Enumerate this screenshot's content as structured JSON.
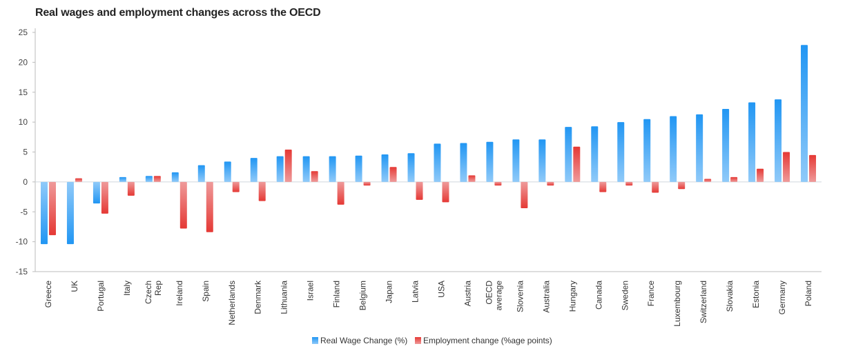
{
  "chart_data": {
    "type": "bar",
    "title": "Real wages and employment changes across the OECD",
    "categories": [
      [
        "Greece"
      ],
      [
        "UK"
      ],
      [
        "Portugal"
      ],
      [
        "Italy"
      ],
      [
        "Czech",
        "Rep"
      ],
      [
        "Ireland"
      ],
      [
        "Spain"
      ],
      [
        "Netherlands"
      ],
      [
        "Denmark"
      ],
      [
        "Lithuania"
      ],
      [
        "Israel"
      ],
      [
        "Finland"
      ],
      [
        "Belgium"
      ],
      [
        "Japan"
      ],
      [
        "Latvia"
      ],
      [
        "USA"
      ],
      [
        "Austria"
      ],
      [
        "OECD",
        "average"
      ],
      [
        "Slovenia"
      ],
      [
        "Australia"
      ],
      [
        "Hungary"
      ],
      [
        "Canada"
      ],
      [
        "Sweden"
      ],
      [
        "France"
      ],
      [
        "Luxembourg"
      ],
      [
        "Switzerland"
      ],
      [
        "Slovakia"
      ],
      [
        "Estonia"
      ],
      [
        "Germany"
      ],
      [
        "Poland"
      ]
    ],
    "series": [
      {
        "name": "Real Wage Change (%)",
        "color": "#42a5f5",
        "values": [
          -10.4,
          -10.4,
          -3.6,
          0.8,
          1.0,
          1.6,
          2.8,
          3.4,
          4.0,
          4.3,
          4.3,
          4.3,
          4.4,
          4.6,
          4.8,
          6.4,
          6.5,
          6.7,
          7.1,
          7.1,
          9.2,
          9.3,
          10.0,
          10.5,
          11.0,
          11.3,
          12.2,
          13.3,
          13.8,
          22.9
        ]
      },
      {
        "name": "Employment change (%age points)",
        "color": "#ef5350",
        "values": [
          -8.9,
          0.6,
          -5.3,
          -2.3,
          1.0,
          -7.8,
          -8.4,
          -1.7,
          -3.2,
          5.4,
          1.8,
          -3.8,
          -0.6,
          2.5,
          -3.0,
          -3.4,
          1.1,
          -0.6,
          -4.4,
          -0.6,
          5.9,
          -1.7,
          -0.6,
          -1.8,
          -1.2,
          0.5,
          0.8,
          2.2,
          5.0,
          4.5
        ]
      }
    ],
    "xlabel": "",
    "ylabel": "",
    "ylim": [
      -15,
      25
    ],
    "yticks": [
      25,
      20,
      15,
      10,
      5,
      0,
      -5,
      -10,
      -15
    ],
    "grid": false,
    "legend_position": "bottom-center"
  }
}
